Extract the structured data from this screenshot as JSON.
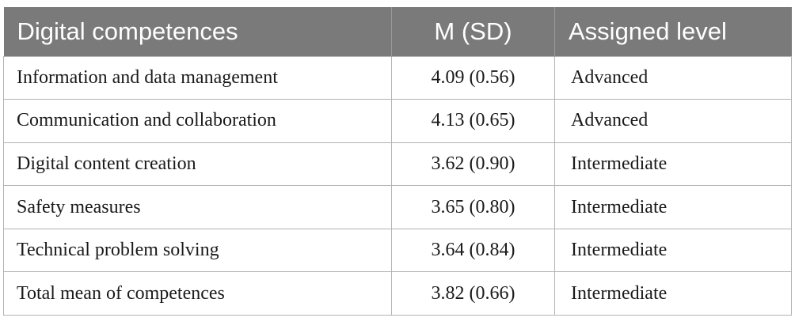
{
  "table": {
    "headers": [
      "Digital competences",
      "M (SD)",
      "Assigned level"
    ],
    "rows": [
      [
        "Information and data management",
        "4.09 (0.56)",
        "Advanced"
      ],
      [
        "Communication and collaboration",
        "4.13 (0.65)",
        "Advanced"
      ],
      [
        "Digital content creation",
        "3.62 (0.90)",
        "Intermediate"
      ],
      [
        "Safety measures",
        "3.65 (0.80)",
        "Intermediate"
      ],
      [
        "Technical problem solving",
        "3.64 (0.84)",
        "Intermediate"
      ],
      [
        "Total mean of competences",
        "3.82 (0.66)",
        "Intermediate"
      ]
    ]
  },
  "colors": {
    "header_background": "#7a7a7a",
    "header_text": "#ffffff",
    "grid_line": "#b3b3b3"
  }
}
